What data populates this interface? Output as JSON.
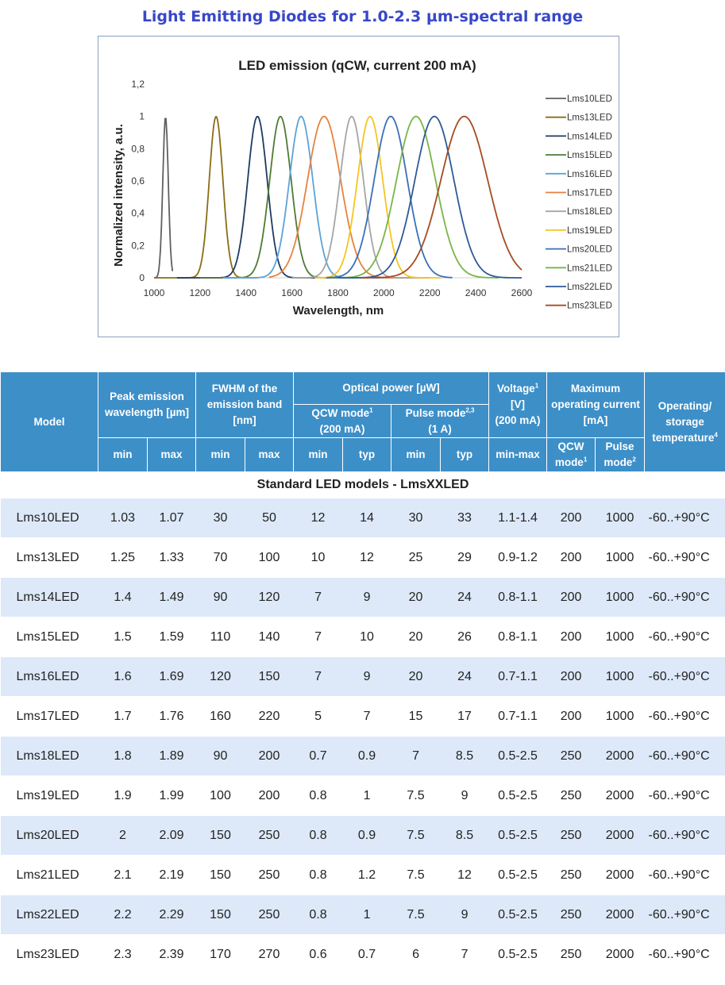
{
  "page_title": "Light Emitting Diodes for 1.0-2.3 µm-spectral range",
  "chart_data": {
    "type": "line",
    "title": "LED emission (qCW, current 200 mA)",
    "xlabel": "Wavelength, nm",
    "ylabel": "Normalized intensity, a.u.",
    "xlim": [
      1000,
      2600
    ],
    "ylim": [
      0,
      1.2
    ],
    "x_ticks": [
      "1000",
      "1200",
      "1400",
      "1600",
      "1800",
      "2000",
      "2200",
      "2400",
      "2600"
    ],
    "y_ticks": [
      "0",
      "0,2",
      "0,4",
      "0,6",
      "0,8",
      "1",
      "1,2"
    ],
    "grid": false,
    "legend_position": "right",
    "series": [
      {
        "name": "Lms10LED",
        "color": "#606060",
        "peak": 1050,
        "fwhm": 28,
        "range": [
          1000,
          1080
        ]
      },
      {
        "name": "Lms13LED",
        "color": "#8a6d14",
        "peak": 1270,
        "fwhm": 70,
        "range": [
          1000,
          1450
        ]
      },
      {
        "name": "Lms14LED",
        "color": "#1f3a63",
        "peak": 1450,
        "fwhm": 100,
        "range": [
          1100,
          1700
        ]
      },
      {
        "name": "Lms15LED",
        "color": "#4f7a34",
        "peak": 1550,
        "fwhm": 110,
        "range": [
          1200,
          1800
        ]
      },
      {
        "name": "Lms16LED",
        "color": "#5ba3d9",
        "peak": 1640,
        "fwhm": 120,
        "range": [
          1300,
          2100
        ]
      },
      {
        "name": "Lms17LED",
        "color": "#e8823c",
        "peak": 1740,
        "fwhm": 170,
        "range": [
          1500,
          2200
        ]
      },
      {
        "name": "Lms18LED",
        "color": "#a5a5a5",
        "peak": 1860,
        "fwhm": 120,
        "range": [
          1600,
          2200
        ]
      },
      {
        "name": "Lms19LED",
        "color": "#f5c520",
        "peak": 1940,
        "fwhm": 130,
        "range": [
          1700,
          2250
        ]
      },
      {
        "name": "Lms20LED",
        "color": "#3a6fb8",
        "peak": 2030,
        "fwhm": 170,
        "range": [
          1750,
          2300
        ]
      },
      {
        "name": "Lms21LED",
        "color": "#79b548",
        "peak": 2140,
        "fwhm": 200,
        "range": [
          1800,
          2500
        ]
      },
      {
        "name": "Lms22LED",
        "color": "#2d5a96",
        "peak": 2220,
        "fwhm": 200,
        "range": [
          1800,
          2600
        ]
      },
      {
        "name": "Lms23LED",
        "color": "#a64b1e",
        "peak": 2350,
        "fwhm": 240,
        "range": [
          1900,
          2600
        ]
      }
    ]
  },
  "table": {
    "headers": {
      "model": "Model",
      "peak": "Peak emission wavelength [µm]",
      "fwhm": "FWHM of the emission band [nm]",
      "optical_power": "Optical power [µW]",
      "qcw_mode": "QCW mode",
      "qcw_mode_sup": "1",
      "qcw_current": "(200 mA)",
      "pulse_mode": "Pulse mode",
      "pulse_mode_sup": "2,3",
      "pulse_current": "(1 A)",
      "voltage": "Voltage",
      "voltage_sup": "1",
      "voltage_unit": "[V]",
      "voltage_current": "(200 mA)",
      "max_current": "Maximum operating current [mA]",
      "temperature": "Operating/ storage temperature",
      "temperature_sup": "4",
      "min": "min",
      "max": "max",
      "typ": "typ",
      "min_max": "min-max",
      "qcw_sub": "QCW mode",
      "qcw_sub_sup": "1",
      "pulse_sub": "Pulse mode",
      "pulse_sub_sup": "2"
    },
    "section_title": "Standard LED models - LmsXXLED",
    "rows": [
      {
        "model": "Lms10LED",
        "peak_min": "1.03",
        "peak_max": "1.07",
        "fwhm_min": "30",
        "fwhm_max": "50",
        "qcw_min": "12",
        "qcw_typ": "14",
        "pulse_min": "30",
        "pulse_typ": "33",
        "voltage": "1.1-1.4",
        "cur_qcw": "200",
        "cur_pulse": "1000",
        "temp": "-60..+90°C"
      },
      {
        "model": "Lms13LED",
        "peak_min": "1.25",
        "peak_max": "1.33",
        "fwhm_min": "70",
        "fwhm_max": "100",
        "qcw_min": "10",
        "qcw_typ": "12",
        "pulse_min": "25",
        "pulse_typ": "29",
        "voltage": "0.9-1.2",
        "cur_qcw": "200",
        "cur_pulse": "1000",
        "temp": "-60..+90°C"
      },
      {
        "model": "Lms14LED",
        "peak_min": "1.4",
        "peak_max": "1.49",
        "fwhm_min": "90",
        "fwhm_max": "120",
        "qcw_min": "7",
        "qcw_typ": "9",
        "pulse_min": "20",
        "pulse_typ": "24",
        "voltage": "0.8-1.1",
        "cur_qcw": "200",
        "cur_pulse": "1000",
        "temp": "-60..+90°C"
      },
      {
        "model": "Lms15LED",
        "peak_min": "1.5",
        "peak_max": "1.59",
        "fwhm_min": "110",
        "fwhm_max": "140",
        "qcw_min": "7",
        "qcw_typ": "10",
        "pulse_min": "20",
        "pulse_typ": "26",
        "voltage": "0.8-1.1",
        "cur_qcw": "200",
        "cur_pulse": "1000",
        "temp": "-60..+90°C"
      },
      {
        "model": "Lms16LED",
        "peak_min": "1.6",
        "peak_max": "1.69",
        "fwhm_min": "120",
        "fwhm_max": "150",
        "qcw_min": "7",
        "qcw_typ": "9",
        "pulse_min": "20",
        "pulse_typ": "24",
        "voltage": "0.7-1.1",
        "cur_qcw": "200",
        "cur_pulse": "1000",
        "temp": "-60..+90°C"
      },
      {
        "model": "Lms17LED",
        "peak_min": "1.7",
        "peak_max": "1.76",
        "fwhm_min": "160",
        "fwhm_max": "220",
        "qcw_min": "5",
        "qcw_typ": "7",
        "pulse_min": "15",
        "pulse_typ": "17",
        "voltage": "0.7-1.1",
        "cur_qcw": "200",
        "cur_pulse": "1000",
        "temp": "-60..+90°C"
      },
      {
        "model": "Lms18LED",
        "peak_min": "1.8",
        "peak_max": "1.89",
        "fwhm_min": "90",
        "fwhm_max": "200",
        "qcw_min": "0.7",
        "qcw_typ": "0.9",
        "pulse_min": "7",
        "pulse_typ": "8.5",
        "voltage": "0.5-2.5",
        "cur_qcw": "250",
        "cur_pulse": "2000",
        "temp": "-60..+90°C"
      },
      {
        "model": "Lms19LED",
        "peak_min": "1.9",
        "peak_max": "1.99",
        "fwhm_min": "100",
        "fwhm_max": "200",
        "qcw_min": "0.8",
        "qcw_typ": "1",
        "pulse_min": "7.5",
        "pulse_typ": "9",
        "voltage": "0.5-2.5",
        "cur_qcw": "250",
        "cur_pulse": "2000",
        "temp": "-60..+90°C"
      },
      {
        "model": "Lms20LED",
        "peak_min": "2",
        "peak_max": "2.09",
        "fwhm_min": "150",
        "fwhm_max": "250",
        "qcw_min": "0.8",
        "qcw_typ": "0.9",
        "pulse_min": "7.5",
        "pulse_typ": "8.5",
        "voltage": "0.5-2.5",
        "cur_qcw": "250",
        "cur_pulse": "2000",
        "temp": "-60..+90°C"
      },
      {
        "model": "Lms21LED",
        "peak_min": "2.1",
        "peak_max": "2.19",
        "fwhm_min": "150",
        "fwhm_max": "250",
        "qcw_min": "0.8",
        "qcw_typ": "1.2",
        "pulse_min": "7.5",
        "pulse_typ": "12",
        "voltage": "0.5-2.5",
        "cur_qcw": "250",
        "cur_pulse": "2000",
        "temp": "-60..+90°C"
      },
      {
        "model": "Lms22LED",
        "peak_min": "2.2",
        "peak_max": "2.29",
        "fwhm_min": "150",
        "fwhm_max": "250",
        "qcw_min": "0.8",
        "qcw_typ": "1",
        "pulse_min": "7.5",
        "pulse_typ": "9",
        "voltage": "0.5-2.5",
        "cur_qcw": "250",
        "cur_pulse": "2000",
        "temp": "-60..+90°C"
      },
      {
        "model": "Lms23LED",
        "peak_min": "2.3",
        "peak_max": "2.39",
        "fwhm_min": "170",
        "fwhm_max": "270",
        "qcw_min": "0.6",
        "qcw_typ": "0.7",
        "pulse_min": "6",
        "pulse_typ": "7",
        "voltage": "0.5-2.5",
        "cur_qcw": "250",
        "cur_pulse": "2000",
        "temp": "-60..+90°C"
      }
    ]
  }
}
